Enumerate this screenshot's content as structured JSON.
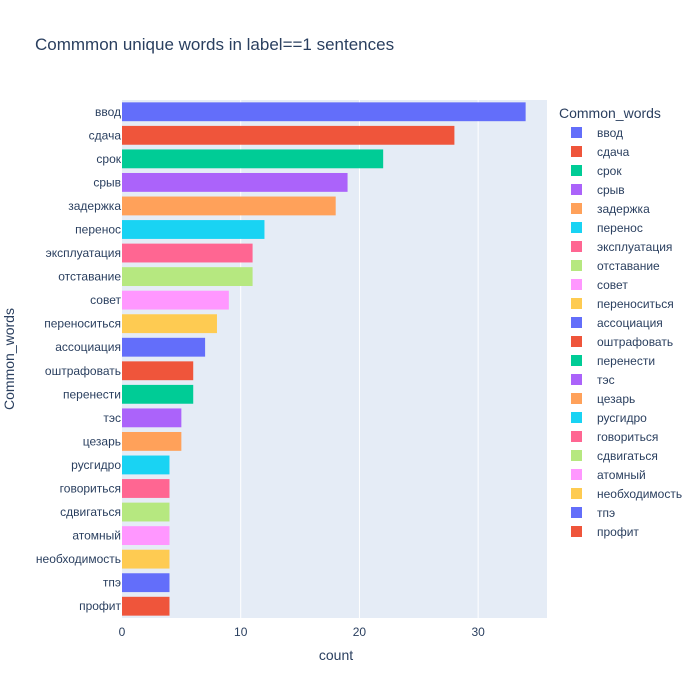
{
  "chart_data": {
    "type": "bar",
    "orientation": "horizontal",
    "title": "Commmon unique words in label==1 sentences",
    "xlabel": "count",
    "ylabel": "Common_words",
    "legend_title": "Common_words",
    "legend_position": "right",
    "xlim": [
      0,
      35.8
    ],
    "xticks": [
      0,
      10,
      20,
      30
    ],
    "grid": true,
    "categories": [
      "ввод",
      "сдача",
      "срок",
      "срыв",
      "задержка",
      "перенос",
      "эксплуатация",
      "отставание",
      "совет",
      "переноситься",
      "ассоциация",
      "оштрафовать",
      "перенести",
      "тэс",
      "цезарь",
      "русгидро",
      "говориться",
      "сдвигаться",
      "атомный",
      "необходимость",
      "тпэ",
      "профит"
    ],
    "values": [
      34,
      28,
      22,
      19,
      18,
      12,
      11,
      11,
      9,
      8,
      7,
      6,
      6,
      5,
      5,
      4,
      4,
      4,
      4,
      4,
      4,
      4
    ],
    "colors": [
      "#636efa",
      "#ef553b",
      "#00cc96",
      "#ab63fa",
      "#ffa15a",
      "#19d3f3",
      "#ff6692",
      "#b6e880",
      "#ff97ff",
      "#fecb52",
      "#636efa",
      "#ef553b",
      "#00cc96",
      "#ab63fa",
      "#ffa15a",
      "#19d3f3",
      "#ff6692",
      "#b6e880",
      "#ff97ff",
      "#fecb52",
      "#636efa",
      "#ef553b"
    ],
    "plot_background": "#e5ecf6"
  }
}
